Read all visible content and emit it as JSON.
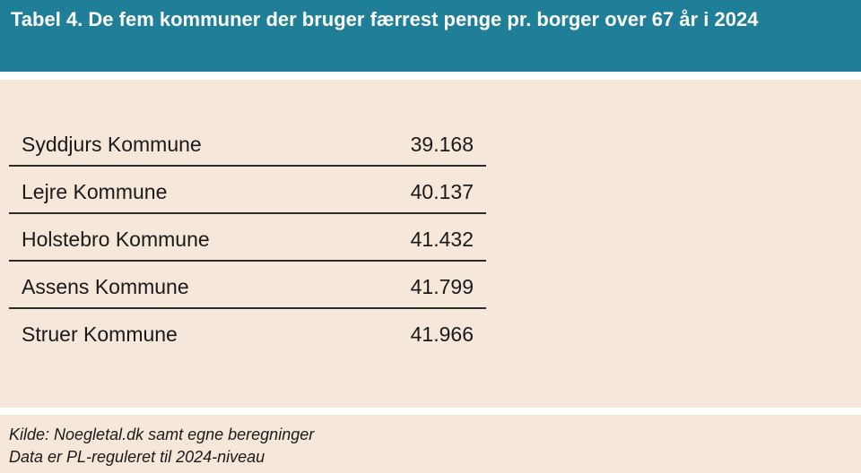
{
  "title": "Tabel 4.  De fem kommuner der bruger færrest penge pr. borger over 67 år i 2024",
  "table": {
    "rows": [
      {
        "name": "Syddjurs Kommune",
        "value": "39.168"
      },
      {
        "name": "Lejre Kommune",
        "value": "40.137"
      },
      {
        "name": "Holstebro Kommune",
        "value": "41.432"
      },
      {
        "name": "Assens Kommune",
        "value": "41.799"
      },
      {
        "name": "Struer Kommune",
        "value": "41.966"
      }
    ]
  },
  "footer": {
    "source": "Kilde: Noegletal.dk samt egne beregninger",
    "note": "Data er PL-reguleret til 2024-niveau"
  },
  "colors": {
    "header_bg": "#1f7f99",
    "panel_bg": "#f5e7da"
  }
}
